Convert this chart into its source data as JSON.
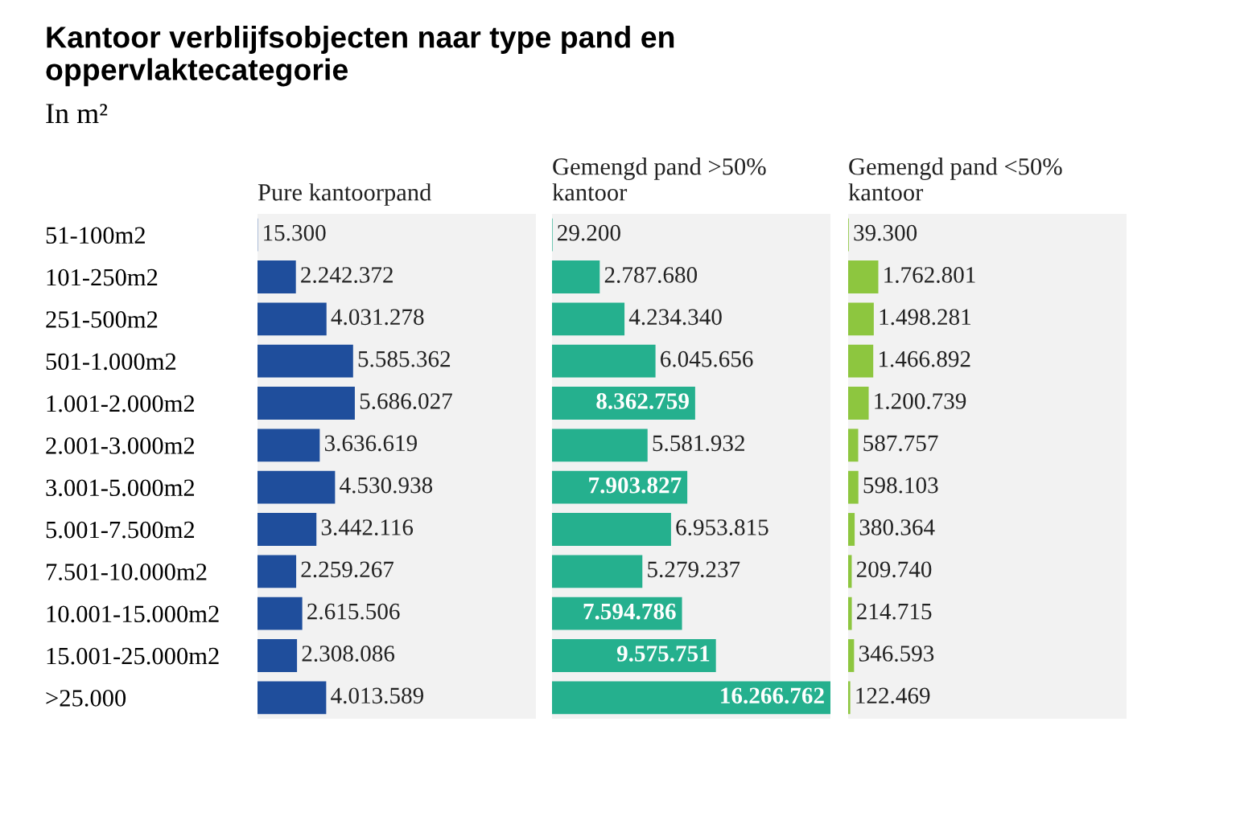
{
  "chart_data": [
    {
      "type": "bar",
      "orientation": "horizontal",
      "title": "Pure kantoorpand",
      "color": "#1f4e9c",
      "xlim": [
        0,
        16266762
      ],
      "tick_labels": "y",
      "categories": [
        "51-100m2",
        "101-250m2",
        "251-500m2",
        "501-1.000m2",
        "1.001-2.000m2",
        "2.001-3.000m2",
        "3.001-5.000m2",
        "5.001-7.500m2",
        "7.501-10.000m2",
        "10.001-15.000m2",
        "15.001-25.000m2",
        ">25.000"
      ],
      "values": [
        15300,
        2242372,
        4031278,
        5585362,
        5686027,
        3636619,
        4530938,
        3442116,
        2259267,
        2615506,
        2308086,
        4013589
      ],
      "value_labels": [
        "15.300",
        "2.242.372",
        "4.031.278",
        "5.585.362",
        "5.686.027",
        "3.636.619",
        "4.530.938",
        "3.442.116",
        "2.259.267",
        "2.615.506",
        "2.308.086",
        "4.013.589"
      ],
      "annotations": [
        "Kantoor verblijfsobjecten naar type pand en oppervlaktecategorie",
        "In m²"
      ]
    },
    {
      "type": "bar",
      "orientation": "horizontal",
      "title": "Gemengd pand >50%\nkantoor",
      "color": "#25b08e",
      "xlim": [
        0,
        16266762
      ],
      "tick_labels": false,
      "categories": [
        null,
        null,
        null,
        null,
        null,
        null,
        null,
        null,
        null,
        null,
        null,
        null
      ],
      "values": [
        29200,
        2787680,
        4234340,
        6045656,
        8362759,
        5581932,
        7903827,
        6953815,
        5279237,
        7594786,
        9575751,
        16266762
      ],
      "value_labels": [
        "29.200",
        "2.787.680",
        "4.234.340",
        "6.045.656",
        "8.362.759",
        "5.581.932",
        "7.903.827",
        "6.953.815",
        "5.279.237",
        "7.594.786",
        "9.575.751",
        "16.266.762"
      ]
    },
    {
      "type": "bar",
      "orientation": "horizontal",
      "title": "Gemengd pand <50%\nkantoor",
      "color": "#8dc63f",
      "xlim": [
        0,
        16266762
      ],
      "tick_labels": false,
      "categories": [
        null,
        null,
        null,
        null,
        null,
        null,
        null,
        null,
        null,
        null,
        null,
        null
      ],
      "values": [
        39300,
        1762801,
        1498281,
        1466892,
        1200739,
        587757,
        598103,
        380364,
        209740,
        214715,
        346593,
        122469
      ],
      "value_labels": [
        "39.300",
        "1.762.801",
        "1.498.281",
        "1.466.892",
        "1.200.739",
        "587.757",
        "598.103",
        "380.364",
        "209.740",
        "214.715",
        "346.593",
        "122.469"
      ]
    }
  ]
}
